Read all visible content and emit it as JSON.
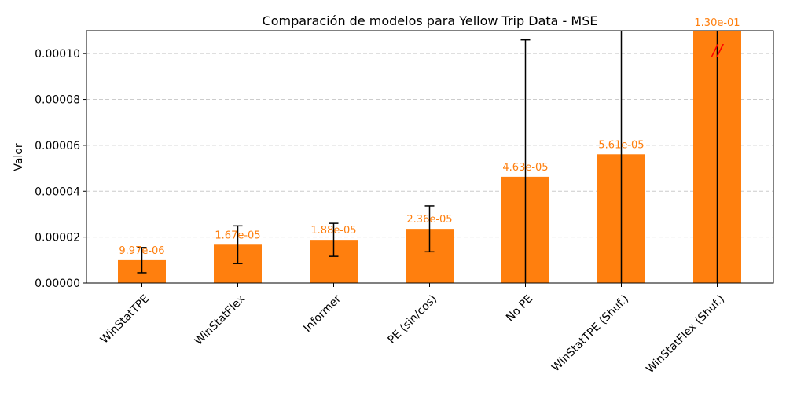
{
  "chart_data": {
    "type": "bar",
    "title": "Comparación de modelos para Yellow Trip Data - MSE",
    "xlabel": "",
    "ylabel": "Valor",
    "ylim": [
      0,
      0.00011
    ],
    "yticks": [
      "0.00000",
      "0.00002",
      "0.00004",
      "0.00006",
      "0.00008",
      "0.00010"
    ],
    "ytick_values": [
      0,
      2e-05,
      4e-05,
      6e-05,
      8e-05,
      0.0001
    ],
    "grid": "y-dashed",
    "categories": [
      "WinStatTPE",
      "WinStatFlex",
      "Informer",
      "PE (sin/cos)",
      "No PE",
      "WinStatTPE (Shuf.)",
      "WinStatFlex (Shuf.)"
    ],
    "values": [
      9.97e-06,
      1.67e-05,
      1.88e-05,
      2.36e-05,
      4.63e-05,
      5.61e-05,
      0.13
    ],
    "errors": [
      5.5e-06,
      8.2e-06,
      7.2e-06,
      1e-05,
      5.97e-05,
      0.0005,
      0.5
    ],
    "value_labels": [
      "9.97e-06",
      "1.67e-05",
      "1.88e-05",
      "2.36e-05",
      "4.63e-05",
      "5.61e-05",
      "1.30e-01"
    ],
    "overflow_marker": "//",
    "colors": {
      "bar": "#ff7f0e",
      "label": "#ff7f0e",
      "error": "#000000",
      "overflow": "#ff0000",
      "grid": "#cccccc"
    }
  }
}
